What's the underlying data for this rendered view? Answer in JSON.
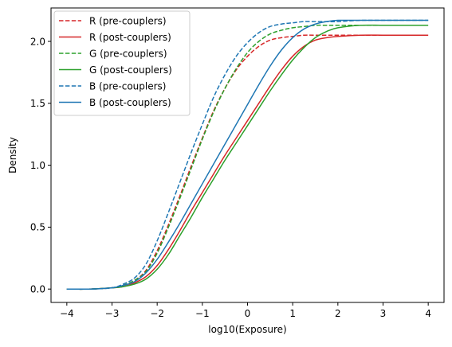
{
  "chart_data": {
    "type": "line",
    "title": "",
    "xlabel": "log10(Exposure)",
    "ylabel": "Density",
    "xlim": [
      -4.35,
      4.35
    ],
    "ylim": [
      -0.108,
      2.27
    ],
    "xticks": [
      -4,
      -3,
      -2,
      -1,
      0,
      1,
      2,
      3,
      4
    ],
    "yticks": [
      0.0,
      0.5,
      1.0,
      1.5,
      2.0
    ],
    "xtick_labels": [
      "−4",
      "−3",
      "−2",
      "−1",
      "0",
      "1",
      "2",
      "3",
      "4"
    ],
    "ytick_labels": [
      "0.0",
      "0.5",
      "1.0",
      "1.5",
      "2.0"
    ],
    "grid": false,
    "legend_position": "top-left",
    "colors": {
      "red": "#d62728",
      "green": "#2ca02c",
      "blue": "#1f77b4"
    },
    "x": [
      -4.0,
      -3.5,
      -3.0,
      -2.75,
      -2.5,
      -2.25,
      -2.0,
      -1.75,
      -1.5,
      -1.25,
      -1.0,
      -0.75,
      -0.5,
      -0.25,
      0.0,
      0.25,
      0.5,
      0.75,
      1.0,
      1.25,
      1.5,
      1.75,
      2.0,
      2.5,
      3.0,
      3.5,
      4.0
    ],
    "series": [
      {
        "name": "R (pre-couplers)",
        "color": "#d62728",
        "style": "dashed",
        "values": [
          0.0,
          0.0,
          0.01,
          0.03,
          0.07,
          0.15,
          0.31,
          0.52,
          0.75,
          0.99,
          1.22,
          1.44,
          1.62,
          1.77,
          1.88,
          1.96,
          2.01,
          2.03,
          2.04,
          2.05,
          2.05,
          2.05,
          2.05,
          2.05,
          2.05,
          2.05,
          2.05
        ]
      },
      {
        "name": "R (post-couplers)",
        "color": "#d62728",
        "style": "solid",
        "values": [
          0.0,
          0.0,
          0.01,
          0.02,
          0.05,
          0.1,
          0.19,
          0.32,
          0.47,
          0.63,
          0.78,
          0.93,
          1.08,
          1.22,
          1.36,
          1.5,
          1.64,
          1.77,
          1.88,
          1.96,
          2.01,
          2.03,
          2.04,
          2.05,
          2.05,
          2.05,
          2.05
        ]
      },
      {
        "name": "G (pre-couplers)",
        "color": "#2ca02c",
        "style": "dashed",
        "values": [
          0.0,
          0.0,
          0.01,
          0.03,
          0.07,
          0.14,
          0.29,
          0.5,
          0.73,
          0.97,
          1.21,
          1.43,
          1.62,
          1.78,
          1.91,
          2.0,
          2.06,
          2.09,
          2.11,
          2.12,
          2.13,
          2.13,
          2.13,
          2.13,
          2.13,
          2.13,
          2.13
        ]
      },
      {
        "name": "G (post-couplers)",
        "color": "#2ca02c",
        "style": "solid",
        "values": [
          0.0,
          0.0,
          0.01,
          0.02,
          0.04,
          0.08,
          0.16,
          0.28,
          0.43,
          0.58,
          0.74,
          0.89,
          1.04,
          1.18,
          1.32,
          1.46,
          1.6,
          1.73,
          1.85,
          1.95,
          2.03,
          2.08,
          2.11,
          2.13,
          2.13,
          2.13,
          2.13
        ]
      },
      {
        "name": "B (pre-couplers)",
        "color": "#1f77b4",
        "style": "dashed",
        "values": [
          0.0,
          0.0,
          0.01,
          0.04,
          0.09,
          0.2,
          0.39,
          0.62,
          0.86,
          1.1,
          1.33,
          1.55,
          1.73,
          1.88,
          1.99,
          2.07,
          2.12,
          2.14,
          2.15,
          2.16,
          2.16,
          2.16,
          2.16,
          2.17,
          2.17,
          2.17,
          2.17
        ]
      },
      {
        "name": "B (post-couplers)",
        "color": "#1f77b4",
        "style": "solid",
        "values": [
          0.0,
          0.0,
          0.01,
          0.03,
          0.06,
          0.13,
          0.24,
          0.38,
          0.53,
          0.69,
          0.85,
          1.01,
          1.17,
          1.33,
          1.49,
          1.65,
          1.8,
          1.93,
          2.03,
          2.1,
          2.14,
          2.16,
          2.17,
          2.17,
          2.17,
          2.17,
          2.17
        ]
      }
    ]
  }
}
